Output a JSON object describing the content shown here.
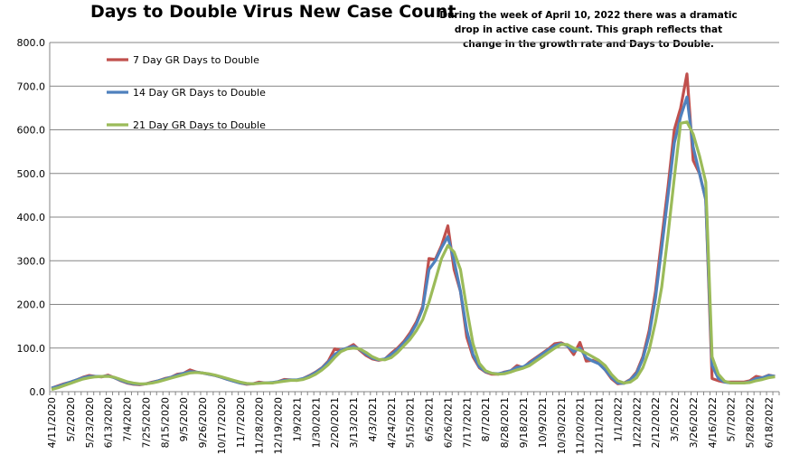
{
  "chart_data": {
    "type": "line",
    "title": "Days to Double Virus New Case Count",
    "subtitle": "During the week of April 10, 2022 there was a dramatic drop in active case count.  This graph reflects that change in the growth rate and Days to Double.",
    "xlabel": "",
    "ylabel": "",
    "ylim": [
      0,
      800
    ],
    "yticks": [
      "0.0",
      "100.0",
      "200.0",
      "300.0",
      "400.0",
      "500.0",
      "600.0",
      "700.0",
      "800.0"
    ],
    "grid": "horizontal",
    "legend_position": "top-left inside",
    "x_start": "4/11/2020",
    "x_interval": "weekly",
    "xtick_labels": [
      "4/11/2020",
      "5/2/2020",
      "5/23/2020",
      "6/13/2020",
      "7/4/2020",
      "7/25/2020",
      "8/15/2020",
      "9/5/2020",
      "9/26/2020",
      "10/17/2020",
      "11/7/2020",
      "11/28/2020",
      "12/19/2020",
      "1/9/2021",
      "1/30/2021",
      "2/20/2021",
      "3/13/2021",
      "4/3/2021",
      "4/24/2021",
      "5/15/2021",
      "6/5/2021",
      "6/26/2021",
      "7/17/2021",
      "8/7/2021",
      "8/28/2021",
      "9/18/2021",
      "10/9/2021",
      "10/30/2021",
      "11/20/2021",
      "12/11/2021",
      "1/1/2022",
      "1/22/2022",
      "2/12/2022",
      "3/5/2022",
      "3/26/2022",
      "4/16/2022",
      "5/7/2022",
      "5/28/2022",
      "6/18/2022"
    ],
    "series": [
      {
        "name": "7 Day GR Days to Double",
        "color": "#c0504d",
        "values": [
          8,
          13,
          18,
          22,
          27,
          33,
          37,
          35,
          34,
          38,
          32,
          25,
          20,
          17,
          16,
          18,
          22,
          25,
          30,
          33,
          40,
          42,
          50,
          45,
          43,
          40,
          37,
          33,
          28,
          24,
          20,
          17,
          18,
          22,
          20,
          20,
          23,
          28,
          27,
          26,
          30,
          37,
          45,
          55,
          70,
          98,
          95,
          100,
          108,
          95,
          83,
          75,
          72,
          75,
          88,
          100,
          115,
          135,
          160,
          195,
          305,
          303,
          335,
          380,
          280,
          230,
          125,
          80,
          55,
          45,
          40,
          40,
          45,
          48,
          60,
          55,
          68,
          78,
          88,
          98,
          110,
          112,
          105,
          85,
          113,
          70,
          72,
          65,
          50,
          30,
          18,
          20,
          28,
          45,
          80,
          140,
          230,
          350,
          470,
          600,
          650,
          728,
          530,
          500,
          440,
          30,
          25,
          22,
          22,
          22,
          22,
          25,
          35,
          32,
          38,
          35
        ]
      },
      {
        "name": "14 Day GR Days to Double",
        "color": "#4f81bd",
        "values": [
          8,
          12,
          17,
          22,
          27,
          32,
          35,
          35,
          35,
          36,
          32,
          26,
          21,
          18,
          17,
          18,
          21,
          25,
          29,
          33,
          38,
          42,
          46,
          45,
          43,
          40,
          37,
          33,
          28,
          24,
          20,
          18,
          18,
          20,
          20,
          21,
          23,
          26,
          27,
          27,
          30,
          36,
          44,
          54,
          68,
          85,
          95,
          100,
          104,
          97,
          86,
          77,
          73,
          75,
          85,
          97,
          112,
          130,
          155,
          190,
          280,
          300,
          330,
          355,
          300,
          230,
          140,
          85,
          57,
          46,
          42,
          41,
          44,
          48,
          56,
          57,
          66,
          76,
          86,
          96,
          106,
          110,
          105,
          92,
          100,
          78,
          70,
          64,
          50,
          33,
          20,
          19,
          27,
          42,
          75,
          130,
          215,
          330,
          450,
          570,
          630,
          675,
          560,
          500,
          440,
          60,
          30,
          22,
          20,
          20,
          20,
          23,
          30,
          32,
          37,
          35
        ]
      },
      {
        "name": "21 Day GR Days to Double",
        "color": "#9bbb59",
        "values": [
          5,
          9,
          14,
          19,
          24,
          29,
          32,
          34,
          35,
          35,
          33,
          28,
          23,
          20,
          18,
          18,
          20,
          23,
          27,
          31,
          35,
          39,
          43,
          44,
          43,
          41,
          38,
          34,
          30,
          26,
          22,
          19,
          18,
          19,
          20,
          20,
          22,
          24,
          26,
          26,
          28,
          33,
          40,
          50,
          62,
          78,
          92,
          98,
          100,
          98,
          90,
          80,
          74,
          73,
          78,
          90,
          105,
          120,
          140,
          165,
          205,
          255,
          305,
          335,
          320,
          280,
          190,
          110,
          65,
          48,
          42,
          40,
          41,
          45,
          50,
          54,
          60,
          70,
          80,
          90,
          100,
          108,
          108,
          100,
          95,
          88,
          80,
          72,
          60,
          40,
          25,
          20,
          22,
          32,
          55,
          95,
          160,
          240,
          360,
          490,
          615,
          618,
          590,
          540,
          480,
          80,
          40,
          24,
          20,
          20,
          20,
          21,
          25,
          28,
          32,
          34
        ]
      }
    ]
  }
}
